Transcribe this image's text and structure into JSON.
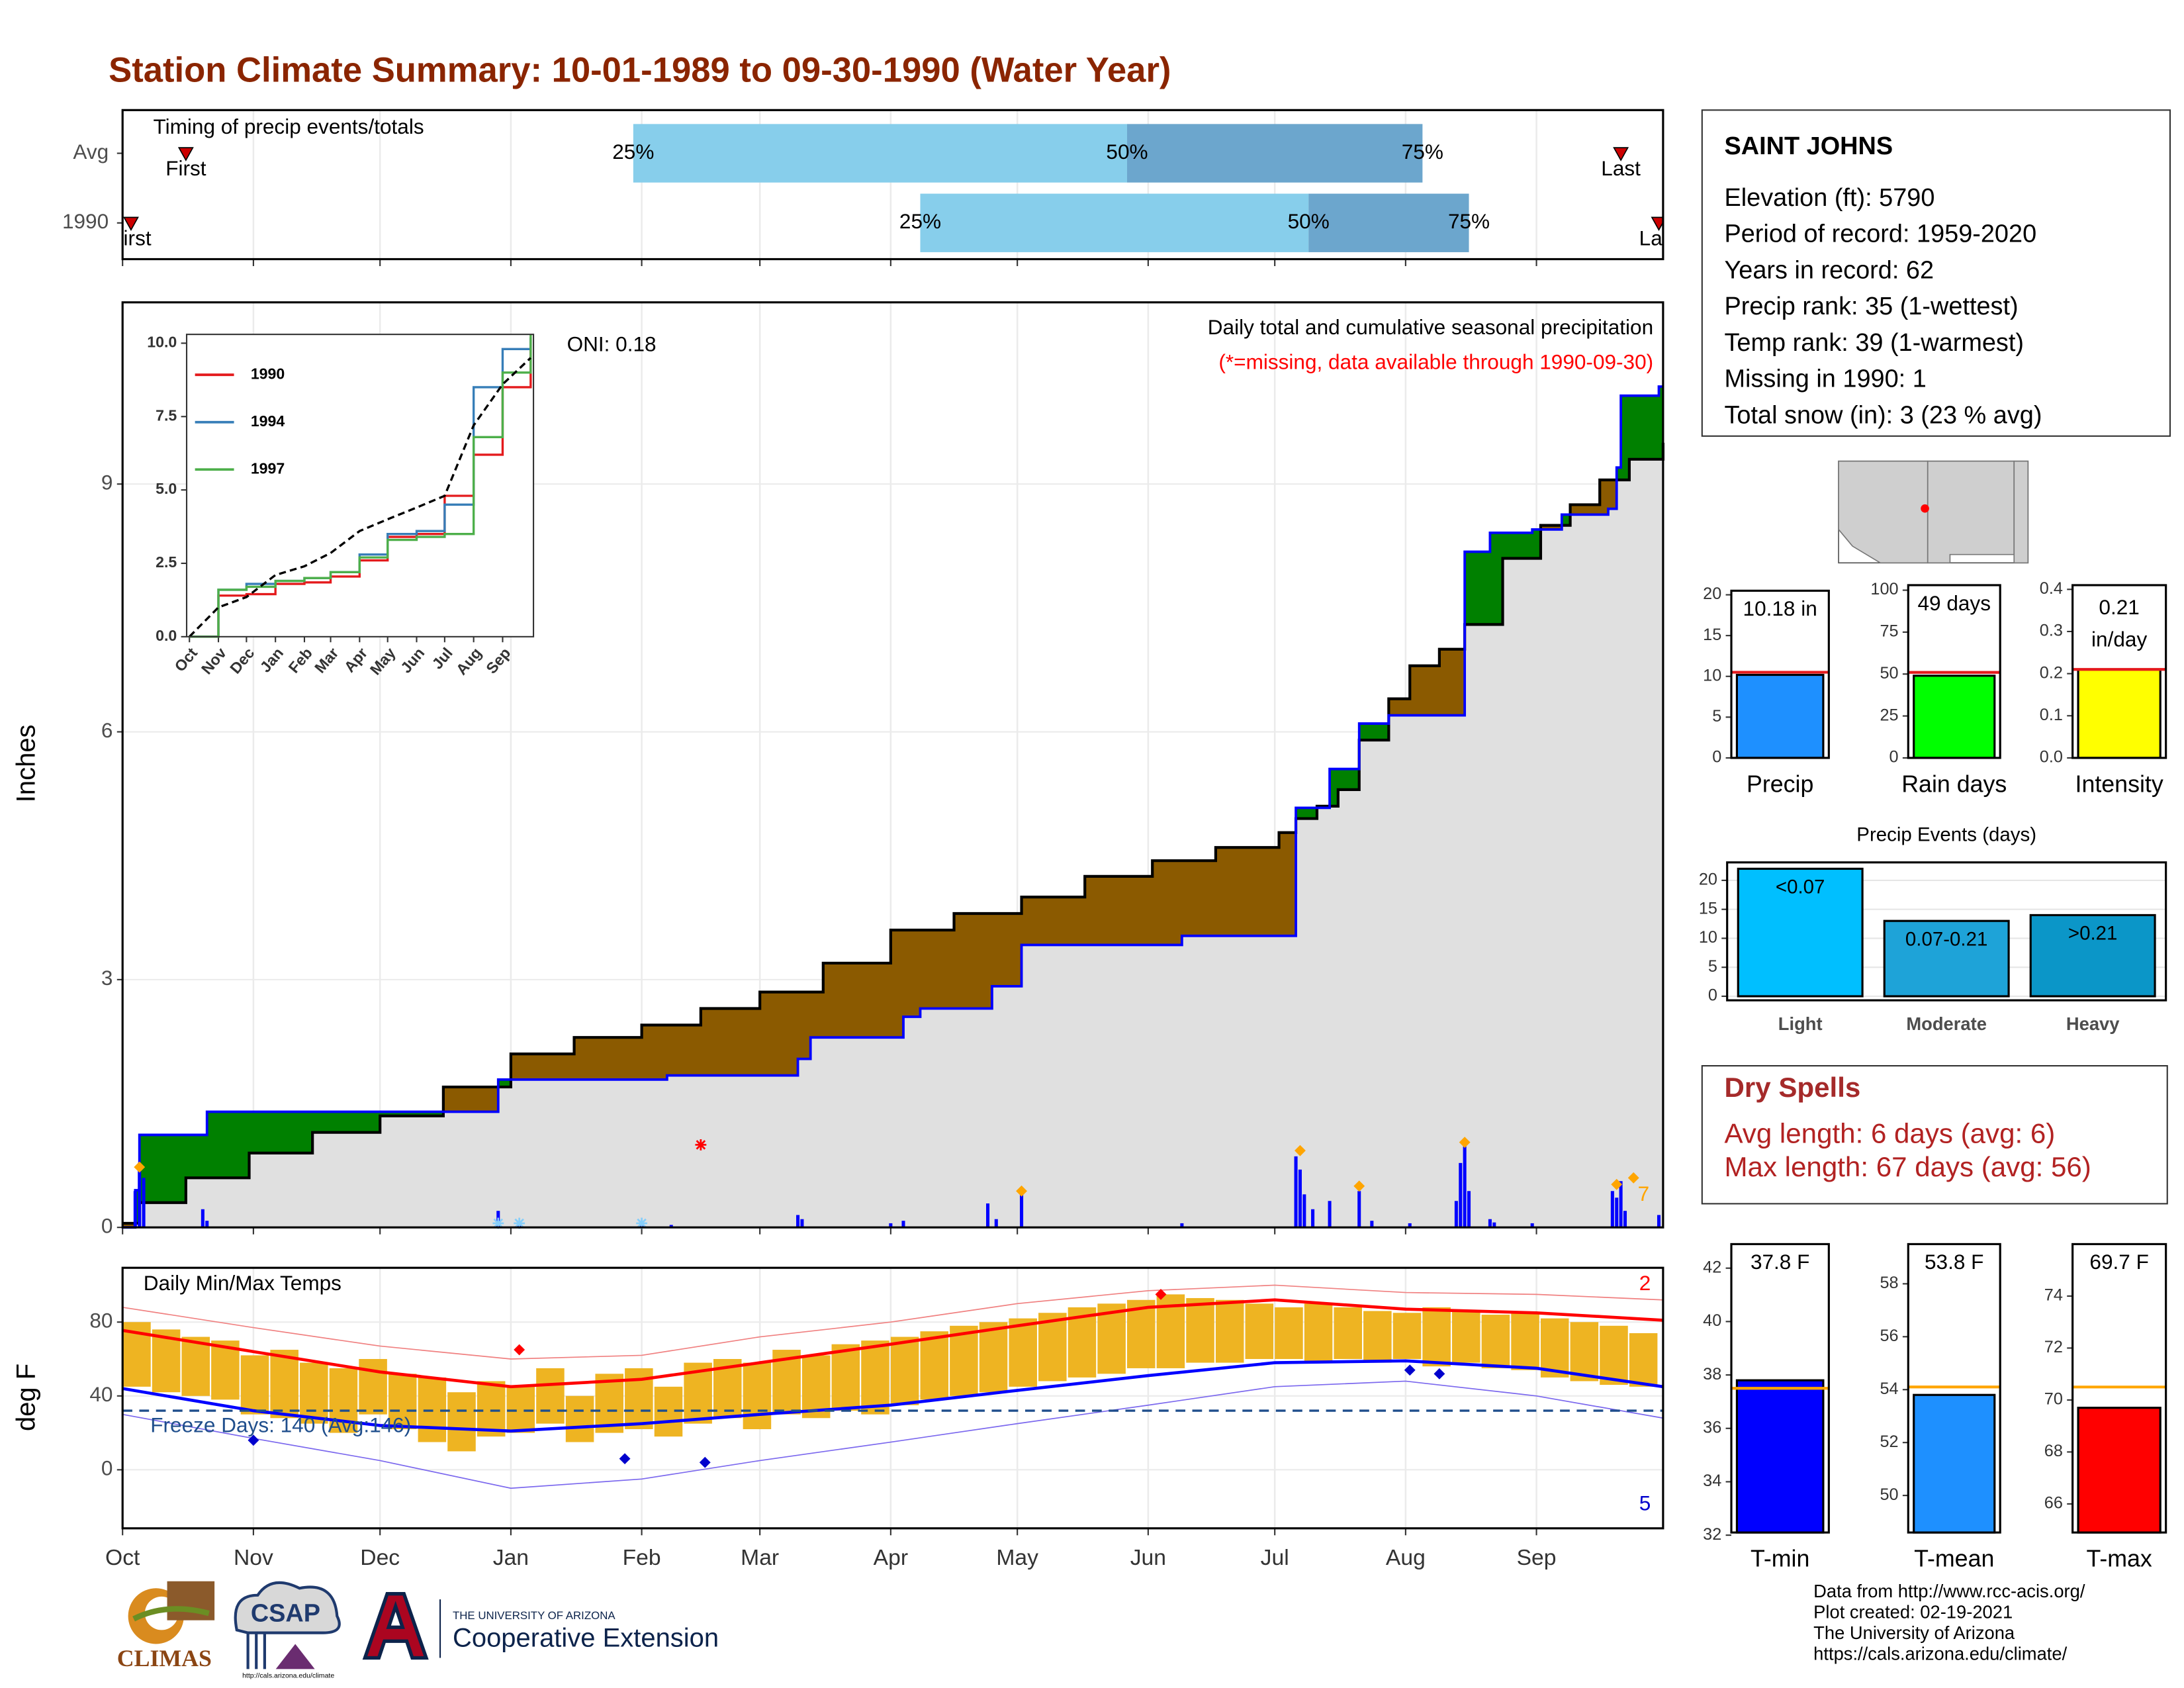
{
  "title": "Station Climate Summary: 10-01-1989 to 09-30-1990 (Water Year)",
  "chart_data": [
    {
      "type": "timing",
      "title": "Timing of precip events/totals",
      "categories": [
        "Avg",
        "1990"
      ],
      "xlim": [
        0,
        365
      ],
      "xticks": [
        0,
        31,
        61,
        92,
        123,
        151,
        182,
        212,
        243,
        273,
        304,
        335
      ],
      "first": [
        15,
        2
      ],
      "q25": [
        121,
        189
      ],
      "q50": [
        238,
        281
      ],
      "q75": [
        308,
        319
      ],
      "last": [
        355,
        364
      ],
      "first_label": "First",
      "last_label": "Last",
      "q25_label": "25%",
      "q50_label": "50%",
      "q75_label": "75%",
      "colors": [
        "#87ceeb",
        "#6ca6cd",
        "#cc0000"
      ]
    },
    {
      "type": "cumulative",
      "title": "Daily total and cumulative seasonal precipitation",
      "subtitle": "(*=missing, data available through 1990-09-30)",
      "annotation": "ONI: 0.18",
      "ylabel": "Inches",
      "count_label": "7",
      "xlim": [
        0,
        365
      ],
      "xticks": [
        0,
        31,
        61,
        92,
        123,
        151,
        182,
        212,
        243,
        273,
        304,
        335
      ],
      "ylim": [
        0,
        11.2
      ],
      "yticks": [
        0,
        3,
        6,
        9
      ],
      "grid": true,
      "fill_colors": [
        "#008000",
        "#8b5a00",
        "#e0e0e0"
      ],
      "series": [
        {
          "color": "#0000ff",
          "x": [
            0,
            3,
            4,
            20,
            89,
            129,
            160,
            163,
            185,
            189,
            206,
            213,
            251,
            278,
            286,
            293,
            300,
            318,
            324,
            334,
            341,
            352,
            354,
            355,
            364
          ],
          "values": [
            0,
            0.45,
            1.12,
            1.4,
            1.79,
            1.84,
            2.04,
            2.3,
            2.55,
            2.65,
            2.92,
            3.42,
            3.53,
            5.08,
            5.55,
            6.1,
            6.2,
            8.18,
            8.41,
            8.45,
            8.63,
            8.7,
            9.2,
            10.07,
            10.18
          ]
        },
        {
          "color": "#000000",
          "x": [
            0,
            4,
            15,
            30,
            45,
            61,
            76,
            92,
            107,
            123,
            137,
            151,
            166,
            182,
            197,
            213,
            228,
            244,
            259,
            274,
            278,
            283,
            288,
            293,
            300,
            305,
            312,
            318,
            327,
            336,
            343,
            350,
            357,
            365
          ],
          "values": [
            0.05,
            0.3,
            0.6,
            0.9,
            1.15,
            1.35,
            1.7,
            2.1,
            2.3,
            2.45,
            2.65,
            2.85,
            3.2,
            3.6,
            3.8,
            4.0,
            4.25,
            4.44,
            4.6,
            4.78,
            4.95,
            5.1,
            5.3,
            5.9,
            6.4,
            6.8,
            7.0,
            7.3,
            8.1,
            8.5,
            8.75,
            9.05,
            9.3,
            9.5
          ]
        }
      ],
      "daily": {
        "color": "#0000ff",
        "x": [
          3,
          4,
          5,
          19,
          20,
          89,
          94,
          123,
          130,
          160,
          161,
          182,
          185,
          205,
          207,
          213,
          251,
          278,
          279,
          280,
          282,
          286,
          293,
          296,
          305,
          316,
          317,
          318,
          319,
          324,
          325,
          334,
          353,
          354,
          355,
          356,
          364
        ],
        "values": [
          0.44,
          0.78,
          0.6,
          0.22,
          0.08,
          0.2,
          0.05,
          0.05,
          0.03,
          0.15,
          0.1,
          0.05,
          0.08,
          0.29,
          0.1,
          0.44,
          0.05,
          0.86,
          0.7,
          0.4,
          0.22,
          0.32,
          0.44,
          0.08,
          0.05,
          0.32,
          0.78,
          0.98,
          0.44,
          0.1,
          0.06,
          0.05,
          0.44,
          0.36,
          0.56,
          0.2,
          0.15
        ]
      },
      "events": {
        "color": "#ffa500",
        "x": [
          4,
          213,
          279,
          293,
          318,
          354,
          358
        ],
        "values": [
          0.73,
          0.44,
          0.93,
          0.5,
          1.03,
          0.52,
          0.6
        ]
      },
      "snow": {
        "color": "#87cefa",
        "x": [
          89,
          94,
          123
        ],
        "values": [
          0.05,
          0.05,
          0.05
        ]
      },
      "missing": {
        "color": "#ff0000",
        "x": [
          137
        ],
        "values": [
          1.0
        ]
      }
    },
    {
      "type": "line",
      "xlim": [
        0,
        365
      ],
      "xticks": [
        {
          "value": 0,
          "label": "Oct"
        },
        {
          "value": 31,
          "label": "Nov"
        },
        {
          "value": 61,
          "label": "Dec"
        },
        {
          "value": 92,
          "label": "Jan"
        },
        {
          "value": 123,
          "label": "Feb"
        },
        {
          "value": 151,
          "label": "Mar"
        },
        {
          "value": 182,
          "label": "Apr"
        },
        {
          "value": 212,
          "label": "May"
        },
        {
          "value": 243,
          "label": "Jun"
        },
        {
          "value": 273,
          "label": "Jul"
        },
        {
          "value": 304,
          "label": "Aug"
        },
        {
          "value": 335,
          "label": "Sep"
        }
      ],
      "ylim": [
        0,
        10.3
      ],
      "yticks": [
        {
          "value": 0,
          "label": "0.0"
        },
        {
          "value": 2.5,
          "label": "2.5"
        },
        {
          "value": 5,
          "label": "5.0"
        },
        {
          "value": 7.5,
          "label": "7.5"
        },
        {
          "value": 10,
          "label": "10.0"
        }
      ],
      "x": [
        0,
        31,
        61,
        92,
        123,
        151,
        182,
        212,
        243,
        273,
        304,
        335,
        365
      ],
      "series": [
        {
          "name": "1990",
          "color": "#e41a1c",
          "values": [
            0,
            1.4,
            1.45,
            1.8,
            1.85,
            2.05,
            2.6,
            3.4,
            3.5,
            4.8,
            6.2,
            8.5,
            10.2
          ]
        },
        {
          "name": "1994",
          "color": "#377eb8",
          "values": [
            0,
            1.6,
            1.8,
            1.9,
            2.0,
            2.2,
            2.8,
            3.5,
            3.6,
            4.5,
            8.5,
            9.8,
            10.2
          ]
        },
        {
          "name": "1997",
          "color": "#4daf4a",
          "values": [
            0,
            1.6,
            1.7,
            1.9,
            2.0,
            2.2,
            2.7,
            3.3,
            3.4,
            3.5,
            6.8,
            9.0,
            10.3
          ]
        }
      ],
      "avg": {
        "color": "#000000",
        "values": [
          0,
          1.0,
          1.35,
          2.1,
          2.4,
          2.85,
          3.6,
          4.0,
          4.4,
          4.8,
          7.2,
          8.6,
          9.5
        ]
      }
    },
    {
      "type": "temps",
      "title": "Daily Min/Max Temps",
      "ylabel": "deg F",
      "annotation": "Freeze Days: 140 (Avg:146)",
      "freeze_line": 32,
      "max_count_label": "2",
      "min_count_label": "5",
      "grid": true,
      "xlim": [
        0,
        365
      ],
      "xticks": [
        {
          "value": 0,
          "label": "Oct"
        },
        {
          "value": 31,
          "label": "Nov"
        },
        {
          "value": 61,
          "label": "Dec"
        },
        {
          "value": 92,
          "label": "Jan"
        },
        {
          "value": 123,
          "label": "Feb"
        },
        {
          "value": 151,
          "label": "Mar"
        },
        {
          "value": 182,
          "label": "Apr"
        },
        {
          "value": 212,
          "label": "May"
        },
        {
          "value": 243,
          "label": "Jun"
        },
        {
          "value": 273,
          "label": "Jul"
        },
        {
          "value": 304,
          "label": "Aug"
        },
        {
          "value": 335,
          "label": "Sep"
        }
      ],
      "ylim": [
        -31.7,
        109.4
      ],
      "yticks": [
        0,
        40,
        80
      ],
      "x": [
        0,
        31,
        61,
        92,
        123,
        151,
        182,
        212,
        243,
        273,
        304,
        335,
        365
      ],
      "series": [
        {
          "color": "#f08080",
          "values": [
            88,
            77,
            67,
            60,
            62,
            72,
            80,
            90,
            97,
            100,
            96,
            95,
            92
          ]
        },
        {
          "color": "#7b68ee",
          "values": [
            30,
            17,
            5,
            -10,
            -5,
            5,
            15,
            25,
            35,
            45,
            48,
            40,
            28
          ]
        },
        {
          "color": "#ff0000",
          "values": [
            75.5,
            64,
            53,
            45,
            49,
            58,
            68,
            78,
            88,
            92,
            87,
            85,
            81
          ]
        },
        {
          "color": "#0000ff",
          "values": [
            44,
            32,
            24,
            21,
            25,
            30,
            35,
            43,
            51,
            58,
            59,
            55,
            45
          ]
        }
      ],
      "bars": {
        "color": "#eeb422",
        "x": [
          0,
          7,
          14,
          21,
          28,
          35,
          42,
          49,
          56,
          63,
          70,
          77,
          84,
          91,
          98,
          105,
          112,
          119,
          126,
          133,
          140,
          147,
          154,
          161,
          168,
          175,
          182,
          189,
          196,
          203,
          210,
          217,
          224,
          231,
          238,
          245,
          252,
          259,
          266,
          273,
          280,
          287,
          294,
          301,
          308,
          315,
          322,
          329,
          336,
          343,
          350,
          357
        ],
        "low": [
          45,
          42,
          40,
          38,
          30,
          28,
          25,
          20,
          30,
          22,
          15,
          10,
          18,
          20,
          25,
          15,
          20,
          22,
          18,
          25,
          28,
          22,
          30,
          28,
          32,
          30,
          35,
          38,
          40,
          42,
          45,
          48,
          50,
          52,
          55,
          55,
          58,
          58,
          60,
          60,
          58,
          60,
          58,
          60,
          56,
          58,
          55,
          54,
          50,
          48,
          46,
          45
        ],
        "high": [
          80,
          76,
          72,
          70,
          62,
          65,
          58,
          55,
          60,
          52,
          50,
          42,
          48,
          45,
          55,
          40,
          52,
          55,
          45,
          58,
          60,
          58,
          65,
          62,
          68,
          70,
          72,
          75,
          78,
          80,
          82,
          85,
          88,
          90,
          92,
          95,
          93,
          92,
          90,
          88,
          90,
          88,
          86,
          85,
          88,
          86,
          84,
          85,
          82,
          80,
          78,
          74
        ]
      },
      "max_records": {
        "color": "#ff0000",
        "x": [
          94,
          246
        ],
        "values": [
          65,
          95
        ]
      },
      "min_records": {
        "color": "#0000cd",
        "x": [
          31,
          119,
          138,
          305,
          312
        ],
        "values": [
          16,
          6,
          4,
          54,
          52
        ]
      }
    },
    {
      "type": "bar",
      "categories": [
        "Precip"
      ],
      "values": [
        10.18
      ],
      "value_labels": [
        "10.18 in"
      ],
      "color": "#1e90ff",
      "avg": 10.5,
      "avg_color": "#e41a1c",
      "ylim": [
        0,
        20.5
      ],
      "yticks": [
        0,
        5,
        10,
        15,
        20
      ]
    },
    {
      "type": "bar",
      "categories": [
        "Rain days"
      ],
      "values": [
        49
      ],
      "value_labels": [
        "49 days"
      ],
      "color": "#00ff00",
      "avg": 51,
      "avg_color": "#e41a1c",
      "ylim": [
        0,
        103
      ],
      "yticks": [
        0,
        25,
        50,
        75,
        100
      ]
    },
    {
      "type": "bar",
      "categories": [
        "Intensity"
      ],
      "values": [
        0.21
      ],
      "value_labels": [
        "0.21"
      ],
      "value_unit": "in/day",
      "color": "#ffff00",
      "avg": 0.21,
      "avg_color": "#e41a1c",
      "ylim": [
        0,
        0.41
      ],
      "yticks": [
        {
          "value": 0,
          "label": "0.0"
        },
        {
          "value": 0.1,
          "label": "0.1"
        },
        {
          "value": 0.2,
          "label": "0.2"
        },
        {
          "value": 0.3,
          "label": "0.3"
        },
        {
          "value": 0.4,
          "label": "0.4"
        }
      ]
    },
    {
      "type": "bar",
      "title": "Precip Events (days)",
      "categories": [
        "Light",
        "Moderate",
        "Heavy"
      ],
      "values": [
        22,
        13,
        14
      ],
      "labels": [
        "<0.07",
        "0.07-0.21",
        ">0.21"
      ],
      "colors": [
        "#00bfff",
        "#1ea3d8",
        "#0b96c8"
      ],
      "ylim": [
        -0.7,
        23.1
      ],
      "yticks": [
        0,
        5,
        10,
        15,
        20
      ],
      "grid": true
    },
    {
      "type": "bar",
      "categories": [
        "T-min"
      ],
      "values": [
        37.8
      ],
      "value_labels": [
        "37.8 F"
      ],
      "color": "#0000ff",
      "avg": 37.5,
      "avg_color": "#ffa500",
      "ylim": [
        32.1,
        42.9
      ],
      "yticks": [
        32,
        34,
        36,
        38,
        40,
        42
      ]
    },
    {
      "type": "bar",
      "categories": [
        "T-mean"
      ],
      "values": [
        53.8
      ],
      "value_labels": [
        "53.8 F"
      ],
      "color": "#1e90ff",
      "avg": 54.1,
      "avg_color": "#ffa500",
      "ylim": [
        48.6,
        59.5
      ],
      "yticks": [
        50,
        52,
        54,
        56,
        58
      ]
    },
    {
      "type": "bar",
      "categories": [
        "T-max"
      ],
      "values": [
        69.7
      ],
      "value_labels": [
        "69.7 F"
      ],
      "color": "#ff0000",
      "avg": 70.5,
      "avg_color": "#ffa500",
      "ylim": [
        64.9,
        76.0
      ],
      "yticks": [
        66,
        68,
        70,
        72,
        74
      ]
    }
  ],
  "station": {
    "name": "SAINT JOHNS",
    "lines": [
      "Elevation (ft): 5790",
      "Period of record: 1959-2020",
      "Years in record: 62",
      "Precip rank: 35 (1-wettest)",
      "Temp rank: 39 (1-warmest)",
      "Missing in 1990: 1",
      "Total snow (in): 3 (23 % avg)"
    ]
  },
  "dry_spells": {
    "title": "Dry Spells",
    "lines": [
      "Avg length: 6 days (avg: 6)",
      "Max length: 67 days (avg: 56)"
    ]
  },
  "footer": [
    "Data from http://www.rcc-acis.org/",
    "Plot created: 02-19-2021",
    "The University of Arizona",
    "https://cals.arizona.edu/climate/"
  ],
  "logos": {
    "climas": "CLIMAS",
    "csap": "CSAP",
    "csap_url": "http://cals.arizona.edu/climate",
    "ua": "THE UNIVERSITY OF ARIZONA",
    "extension": "Cooperative Extension"
  }
}
